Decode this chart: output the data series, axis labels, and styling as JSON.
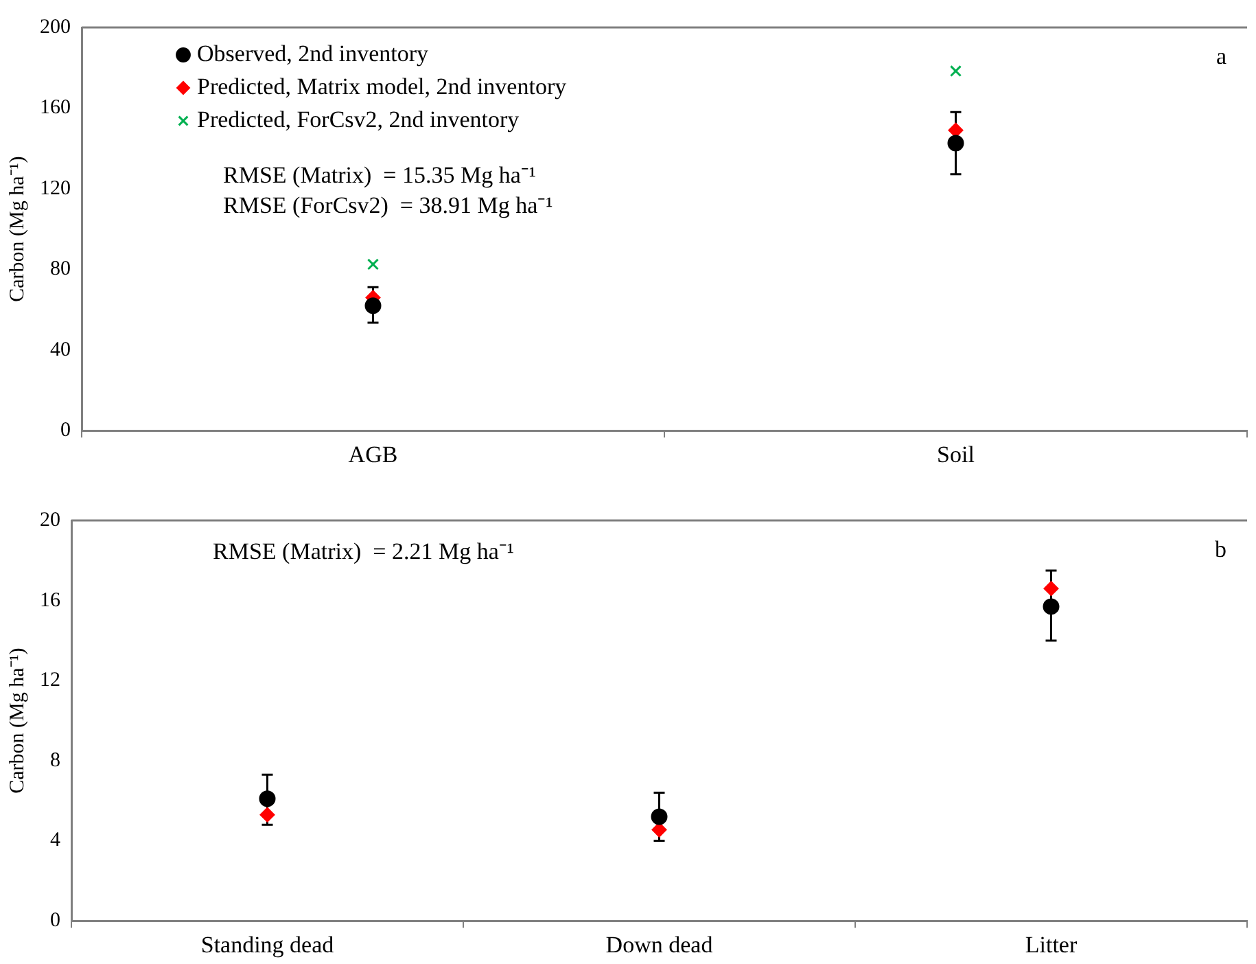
{
  "chart_data": [
    {
      "type": "scatter",
      "ylabel": "Carbon (Mg ha⁻¹)",
      "categories": [
        "AGB",
        "Soil"
      ],
      "ylim": [
        0,
        200
      ],
      "yticks": [
        0,
        40,
        80,
        120,
        160,
        200
      ],
      "grid": false,
      "legend": "top left",
      "series": [
        {
          "name": "Observed, 2nd inventory",
          "color": "#000000",
          "marker": "circle",
          "values": [
            62,
            142.6
          ],
          "errors": [
            [
              53.5,
              71.2
            ],
            [
              127.2,
              158
            ]
          ]
        },
        {
          "name": "Predicted, Matrix model, 2nd inventory",
          "color": "#ff0000",
          "marker": "diamond",
          "values": [
            66,
            149
          ]
        },
        {
          "name": "Predicted, ForCsv2, 2nd inventory",
          "color": "#00b050",
          "marker": "cross",
          "values": [
            82.5,
            178.4
          ]
        }
      ],
      "annotations": [
        "a",
        "RMSE (Matrix)  = 15.35 Mg ha⁻¹",
        "RMSE (ForCsv2)  = 38.91 Mg ha⁻¹"
      ]
    },
    {
      "type": "scatter",
      "ylabel": "Carbon (Mg ha⁻¹)",
      "categories": [
        "Standing dead",
        "Down dead",
        "Litter"
      ],
      "ylim": [
        0,
        20
      ],
      "yticks": [
        0,
        4,
        8,
        12,
        16,
        20
      ],
      "grid": false,
      "legend": false,
      "series": [
        {
          "color": "#000000",
          "marker": "circle",
          "values": [
            6.1,
            5.2,
            15.7
          ],
          "errors": [
            [
              4.8,
              7.3
            ],
            [
              4.0,
              6.4
            ],
            [
              14.0,
              17.5
            ]
          ]
        },
        {
          "color": "#ff0000",
          "marker": "diamond",
          "values": [
            5.3,
            4.55,
            16.6
          ]
        }
      ],
      "annotations": [
        "b",
        "RMSE (Matrix)  = 2.21 Mg ha⁻¹"
      ]
    }
  ]
}
